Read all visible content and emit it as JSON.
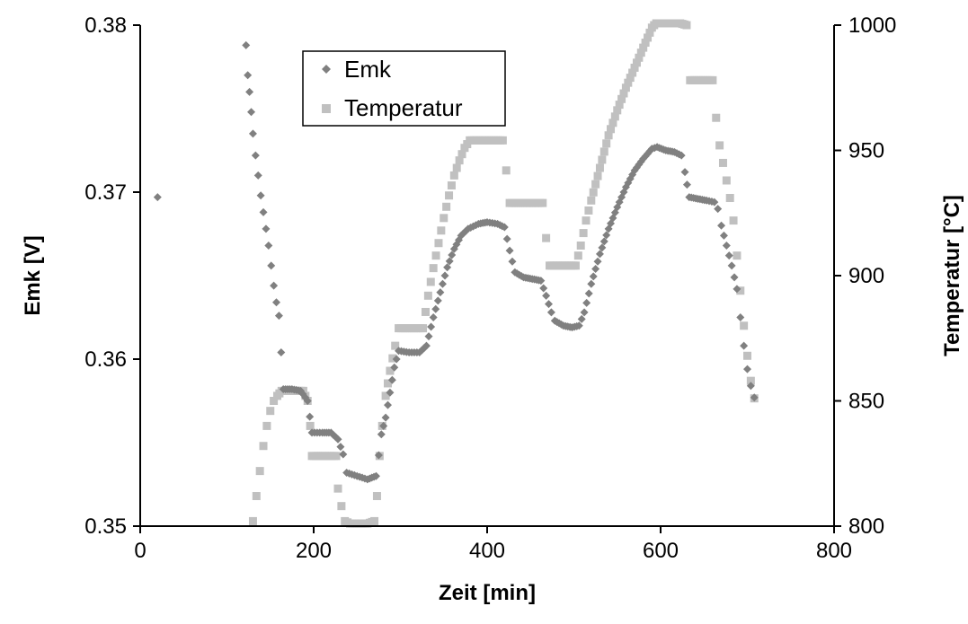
{
  "chart_data": {
    "type": "scatter",
    "xlabel": "Zeit [min]",
    "ylabel": "Emk [V]",
    "y2label": "Temperatur [°C]",
    "xlim": [
      0,
      800
    ],
    "ylim": [
      0.35,
      0.38
    ],
    "y2lim": [
      800,
      1000
    ],
    "xticks": [
      "0",
      "200",
      "400",
      "600",
      "800"
    ],
    "yticks": [
      "0.35",
      "0.36",
      "0.37",
      "0.38"
    ],
    "y2ticks": [
      "800",
      "850",
      "900",
      "950",
      "1000"
    ],
    "grid": false,
    "legend": {
      "position": "top-center",
      "entries": [
        "Emk",
        "Temperatur"
      ]
    },
    "series": [
      {
        "name": "Emk",
        "axis": "left",
        "marker": "diamond",
        "color": "#808080",
        "points": [
          [
            20,
            0.3697
          ],
          [
            122,
            0.3788
          ],
          [
            124,
            0.377
          ],
          [
            126,
            0.376
          ],
          [
            128,
            0.3748
          ],
          [
            130,
            0.3735
          ],
          [
            133,
            0.3722
          ],
          [
            136,
            0.371
          ],
          [
            139,
            0.3698
          ],
          [
            142,
            0.3688
          ],
          [
            145,
            0.3678
          ],
          [
            148,
            0.3668
          ],
          [
            151,
            0.3656
          ],
          [
            154,
            0.3644
          ],
          [
            157,
            0.3634
          ],
          [
            160,
            0.3626
          ],
          [
            165,
            0.3582
          ],
          [
            175,
            0.3582
          ],
          [
            185,
            0.3581
          ],
          [
            193,
            0.3575
          ],
          [
            198,
            0.3556
          ],
          [
            210,
            0.3556
          ],
          [
            220,
            0.3556
          ],
          [
            228,
            0.3552
          ],
          [
            234,
            0.3543
          ],
          [
            238,
            0.3532
          ],
          [
            250,
            0.353
          ],
          [
            262,
            0.3528
          ],
          [
            272,
            0.353
          ],
          [
            278,
            0.3555
          ],
          [
            283,
            0.3565
          ],
          [
            288,
            0.358
          ],
          [
            293,
            0.3595
          ],
          [
            298,
            0.3605
          ],
          [
            310,
            0.3604
          ],
          [
            322,
            0.3604
          ],
          [
            330,
            0.3608
          ],
          [
            338,
            0.3625
          ],
          [
            346,
            0.364
          ],
          [
            354,
            0.3655
          ],
          [
            362,
            0.3666
          ],
          [
            370,
            0.3674
          ],
          [
            378,
            0.3678
          ],
          [
            390,
            0.3681
          ],
          [
            400,
            0.3682
          ],
          [
            412,
            0.3681
          ],
          [
            420,
            0.3679
          ],
          [
            426,
            0.3665
          ],
          [
            432,
            0.3652
          ],
          [
            442,
            0.3649
          ],
          [
            452,
            0.3648
          ],
          [
            462,
            0.3647
          ],
          [
            468,
            0.3638
          ],
          [
            474,
            0.3628
          ],
          [
            478,
            0.3623
          ],
          [
            488,
            0.362
          ],
          [
            498,
            0.3619
          ],
          [
            506,
            0.362
          ],
          [
            512,
            0.3628
          ],
          [
            520,
            0.3645
          ],
          [
            530,
            0.3663
          ],
          [
            540,
            0.3678
          ],
          [
            550,
            0.3691
          ],
          [
            560,
            0.3703
          ],
          [
            570,
            0.3713
          ],
          [
            580,
            0.372
          ],
          [
            590,
            0.3726
          ],
          [
            596,
            0.3727
          ],
          [
            606,
            0.3725
          ],
          [
            616,
            0.3724
          ],
          [
            624,
            0.3722
          ],
          [
            628,
            0.3712
          ],
          [
            633,
            0.3697
          ],
          [
            643,
            0.3696
          ],
          [
            653,
            0.3695
          ],
          [
            662,
            0.3694
          ],
          [
            666,
            0.369
          ],
          [
            670,
            0.368
          ],
          [
            676,
            0.3668
          ],
          [
            682,
            0.3656
          ],
          [
            688,
            0.3642
          ],
          [
            692,
            0.3625
          ],
          [
            696,
            0.3608
          ],
          [
            700,
            0.3594
          ],
          [
            704,
            0.3584
          ],
          [
            708,
            0.3577
          ]
        ]
      },
      {
        "name": "Temperatur",
        "axis": "right",
        "marker": "square",
        "color": "#c0c0c0",
        "points": [
          [
            130,
            802
          ],
          [
            134,
            812
          ],
          [
            138,
            822
          ],
          [
            142,
            832
          ],
          [
            146,
            840
          ],
          [
            150,
            846
          ],
          [
            154,
            850
          ],
          [
            158,
            852
          ],
          [
            163,
            854
          ],
          [
            170,
            854
          ],
          [
            180,
            854
          ],
          [
            188,
            854
          ],
          [
            193,
            850
          ],
          [
            196,
            840
          ],
          [
            198,
            828
          ],
          [
            208,
            828
          ],
          [
            218,
            828
          ],
          [
            226,
            828
          ],
          [
            228,
            815
          ],
          [
            232,
            808
          ],
          [
            236,
            802
          ],
          [
            242,
            801
          ],
          [
            252,
            801
          ],
          [
            262,
            801
          ],
          [
            270,
            802
          ],
          [
            273,
            812
          ],
          [
            276,
            828
          ],
          [
            279,
            840
          ],
          [
            283,
            852
          ],
          [
            288,
            862
          ],
          [
            294,
            872
          ],
          [
            298,
            879
          ],
          [
            308,
            879
          ],
          [
            318,
            879
          ],
          [
            326,
            879
          ],
          [
            332,
            892
          ],
          [
            338,
            903
          ],
          [
            344,
            913
          ],
          [
            350,
            923
          ],
          [
            356,
            932
          ],
          [
            362,
            940
          ],
          [
            368,
            946
          ],
          [
            374,
            951
          ],
          [
            380,
            954
          ],
          [
            390,
            954
          ],
          [
            400,
            954
          ],
          [
            410,
            954
          ],
          [
            418,
            954
          ],
          [
            422,
            942
          ],
          [
            426,
            929
          ],
          [
            436,
            929
          ],
          [
            446,
            929
          ],
          [
            456,
            929
          ],
          [
            464,
            929
          ],
          [
            468,
            915
          ],
          [
            472,
            904
          ],
          [
            482,
            904
          ],
          [
            492,
            904
          ],
          [
            502,
            904
          ],
          [
            508,
            912
          ],
          [
            514,
            922
          ],
          [
            520,
            930
          ],
          [
            530,
            943
          ],
          [
            540,
            956
          ],
          [
            550,
            966
          ],
          [
            560,
            975
          ],
          [
            570,
            983
          ],
          [
            580,
            991
          ],
          [
            590,
            999
          ],
          [
            600,
            1003
          ],
          [
            630,
            1000
          ],
          [
            634,
            978
          ],
          [
            644,
            978
          ],
          [
            654,
            978
          ],
          [
            660,
            978
          ],
          [
            664,
            963
          ],
          [
            668,
            952
          ],
          [
            672,
            945
          ],
          [
            676,
            938
          ],
          [
            680,
            931
          ],
          [
            684,
            922
          ],
          [
            688,
            908
          ],
          [
            692,
            894
          ],
          [
            696,
            880
          ],
          [
            700,
            868
          ],
          [
            704,
            858
          ],
          [
            708,
            851
          ]
        ]
      }
    ]
  }
}
